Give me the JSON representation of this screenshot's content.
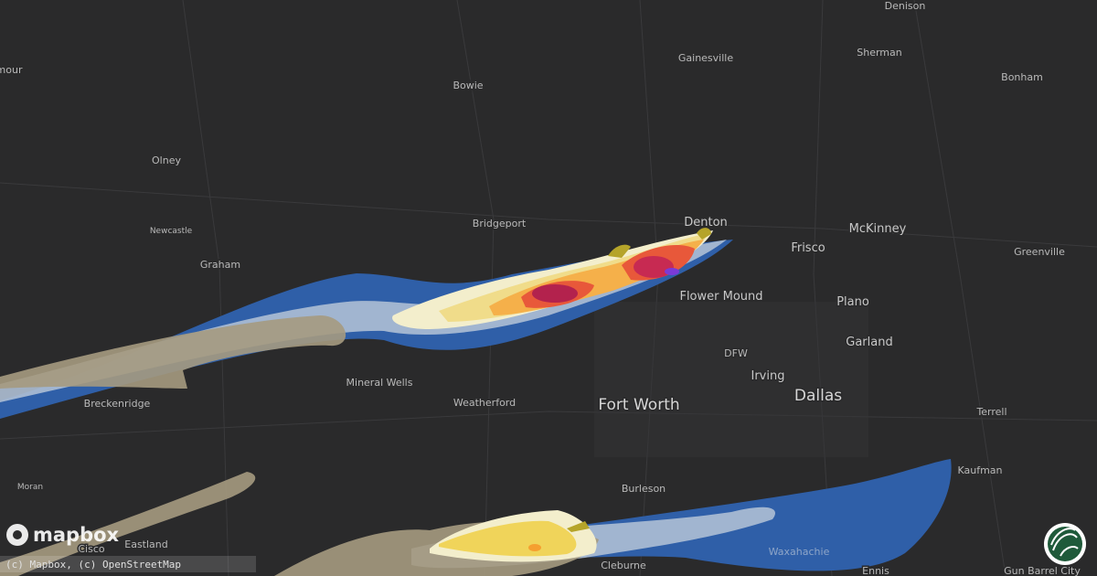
{
  "map": {
    "places": [
      {
        "label": "Denison"
      },
      {
        "label": "Gainesville"
      },
      {
        "label": "Sherman"
      },
      {
        "label": "Bonham"
      },
      {
        "label": "mour"
      },
      {
        "label": "Bowie"
      },
      {
        "label": "Olney"
      },
      {
        "label": "Denton"
      },
      {
        "label": "McKinney"
      },
      {
        "label": "Frisco"
      },
      {
        "label": "Greenville"
      },
      {
        "label": "Newcastle"
      },
      {
        "label": "Graham"
      },
      {
        "label": "Bridgeport"
      },
      {
        "label": "Flower Mound"
      },
      {
        "label": "Plano"
      },
      {
        "label": "DFW"
      },
      {
        "label": "Irving"
      },
      {
        "label": "Garland"
      },
      {
        "label": "Mineral Wells"
      },
      {
        "label": "Weatherford"
      },
      {
        "label": "Fort Worth"
      },
      {
        "label": "Dallas"
      },
      {
        "label": "Breckenridge"
      },
      {
        "label": "Terrell"
      },
      {
        "label": "Kaufman"
      },
      {
        "label": "Burleson"
      },
      {
        "label": "Moran"
      },
      {
        "label": "Eastland"
      },
      {
        "label": "Cisco"
      },
      {
        "label": "Cleburne"
      },
      {
        "label": "Waxahachie"
      },
      {
        "label": "Ennis"
      },
      {
        "label": "Gun Barrel City"
      }
    ],
    "logo": "mapbox",
    "attribution": "(c) Mapbox, (c) OpenStreetMap"
  }
}
